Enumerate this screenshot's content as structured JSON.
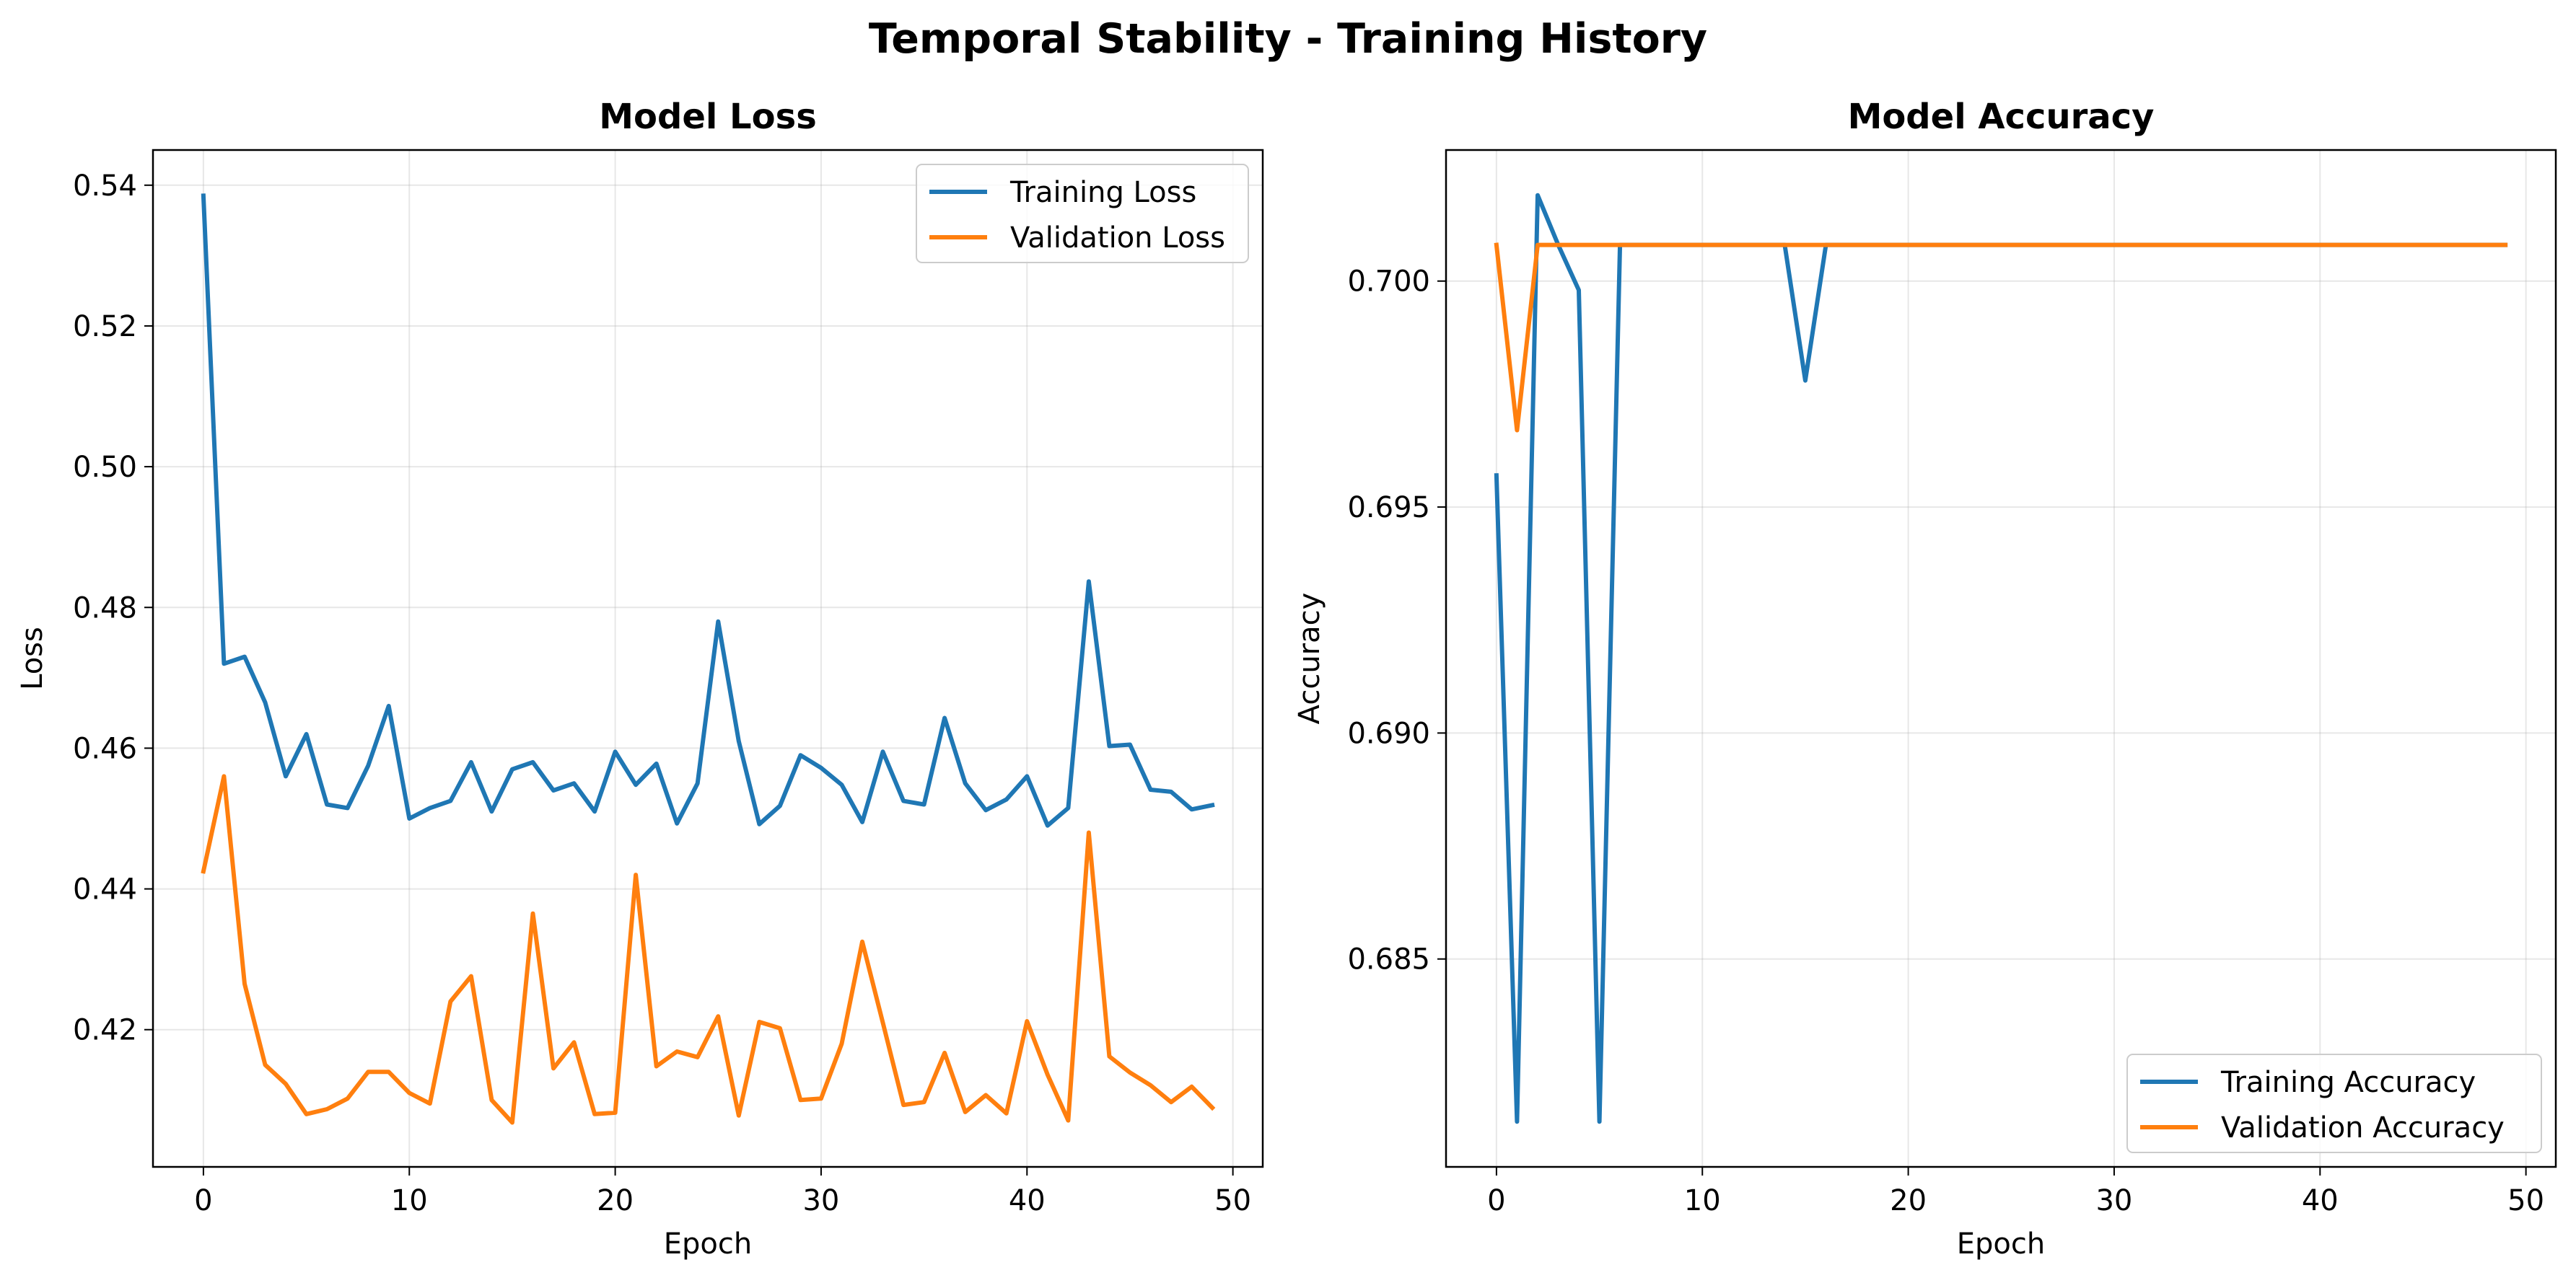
{
  "suptitle": "Temporal Stability - Training History",
  "chart_data": [
    {
      "type": "line",
      "title": "Model Loss",
      "xlabel": "Epoch",
      "ylabel": "Loss",
      "xlim": [
        -2.45,
        51.45
      ],
      "ylim": [
        0.4005,
        0.545
      ],
      "xticks": [
        0,
        10,
        20,
        30,
        40,
        50
      ],
      "xtick_labels": [
        "0",
        "10",
        "20",
        "30",
        "40",
        "50"
      ],
      "yticks": [
        0.42,
        0.44,
        0.46,
        0.48,
        0.5,
        0.52,
        0.54
      ],
      "ytick_labels": [
        "0.42",
        "0.44",
        "0.46",
        "0.48",
        "0.50",
        "0.52",
        "0.54"
      ],
      "grid": true,
      "legend_position": "upper-right",
      "x": [
        0,
        1,
        2,
        3,
        4,
        5,
        6,
        7,
        8,
        9,
        10,
        11,
        12,
        13,
        14,
        15,
        16,
        17,
        18,
        19,
        20,
        21,
        22,
        23,
        24,
        25,
        26,
        27,
        28,
        29,
        30,
        31,
        32,
        33,
        34,
        35,
        36,
        37,
        38,
        39,
        40,
        41,
        42,
        43,
        44,
        45,
        46,
        47,
        48,
        49
      ],
      "series": [
        {
          "name": "Training Loss",
          "color": "#1f77b4",
          "values": [
            0.5385,
            0.472,
            0.473,
            0.4665,
            0.456,
            0.462,
            0.452,
            0.4515,
            0.4575,
            0.466,
            0.45,
            0.4515,
            0.4525,
            0.458,
            0.451,
            0.457,
            0.458,
            0.454,
            0.455,
            0.451,
            0.4595,
            0.4548,
            0.4578,
            0.4493,
            0.455,
            0.478,
            0.461,
            0.4492,
            0.4518,
            0.459,
            0.4572,
            0.4548,
            0.4495,
            0.4595,
            0.4525,
            0.452,
            0.4643,
            0.455,
            0.4512,
            0.4527,
            0.456,
            0.449,
            0.4515,
            0.4837,
            0.4603,
            0.4605,
            0.4541,
            0.4538,
            0.4513,
            0.4519
          ]
        },
        {
          "name": "Validation Loss",
          "color": "#ff7f0e",
          "values": [
            0.4425,
            0.456,
            0.4265,
            0.415,
            0.4123,
            0.408,
            0.4087,
            0.4102,
            0.414,
            0.414,
            0.411,
            0.4095,
            0.424,
            0.4276,
            0.41,
            0.4068,
            0.4365,
            0.4145,
            0.4182,
            0.408,
            0.4082,
            0.442,
            0.4148,
            0.4169,
            0.4161,
            0.4219,
            0.4078,
            0.4211,
            0.4202,
            0.41,
            0.4102,
            0.418,
            0.4325,
            0.421,
            0.4093,
            0.4097,
            0.4167,
            0.4083,
            0.4107,
            0.4081,
            0.4212,
            0.4136,
            0.4071,
            0.448,
            0.4162,
            0.4139,
            0.4121,
            0.4097,
            0.4119,
            0.4089
          ]
        }
      ]
    },
    {
      "type": "line",
      "title": "Model Accuracy",
      "xlabel": "Epoch",
      "ylabel": "Accuracy",
      "xlim": [
        -2.45,
        51.45
      ],
      "ylim": [
        0.6804,
        0.7029
      ],
      "xticks": [
        0,
        10,
        20,
        30,
        40,
        50
      ],
      "xtick_labels": [
        "0",
        "10",
        "20",
        "30",
        "40",
        "50"
      ],
      "yticks": [
        0.685,
        0.69,
        0.695,
        0.7
      ],
      "ytick_labels": [
        "0.685",
        "0.690",
        "0.695",
        "0.700"
      ],
      "grid": true,
      "legend_position": "lower-right",
      "x": [
        0,
        1,
        2,
        3,
        4,
        5,
        6,
        7,
        8,
        9,
        10,
        11,
        12,
        13,
        14,
        15,
        16,
        17,
        18,
        19,
        20,
        21,
        22,
        23,
        24,
        25,
        26,
        27,
        28,
        29,
        30,
        31,
        32,
        33,
        34,
        35,
        36,
        37,
        38,
        39,
        40,
        41,
        42,
        43,
        44,
        45,
        46,
        47,
        48,
        49
      ],
      "series": [
        {
          "name": "Training Accuracy",
          "color": "#1f77b4",
          "values": [
            0.6957,
            0.6814,
            0.7019,
            0.7008,
            0.6998,
            0.6814,
            0.7008,
            0.7008,
            0.7008,
            0.7008,
            0.7008,
            0.7008,
            0.7008,
            0.7008,
            0.7008,
            0.6978,
            0.7008,
            0.7008,
            0.7008,
            0.7008,
            0.7008,
            0.7008,
            0.7008,
            0.7008,
            0.7008,
            0.7008,
            0.7008,
            0.7008,
            0.7008,
            0.7008,
            0.7008,
            0.7008,
            0.7008,
            0.7008,
            0.7008,
            0.7008,
            0.7008,
            0.7008,
            0.7008,
            0.7008,
            0.7008,
            0.7008,
            0.7008,
            0.7008,
            0.7008,
            0.7008,
            0.7008,
            0.7008,
            0.7008,
            0.7008
          ]
        },
        {
          "name": "Validation Accuracy",
          "color": "#ff7f0e",
          "values": [
            0.7008,
            0.6967,
            0.7008,
            0.7008,
            0.7008,
            0.7008,
            0.7008,
            0.7008,
            0.7008,
            0.7008,
            0.7008,
            0.7008,
            0.7008,
            0.7008,
            0.7008,
            0.7008,
            0.7008,
            0.7008,
            0.7008,
            0.7008,
            0.7008,
            0.7008,
            0.7008,
            0.7008,
            0.7008,
            0.7008,
            0.7008,
            0.7008,
            0.7008,
            0.7008,
            0.7008,
            0.7008,
            0.7008,
            0.7008,
            0.7008,
            0.7008,
            0.7008,
            0.7008,
            0.7008,
            0.7008,
            0.7008,
            0.7008,
            0.7008,
            0.7008,
            0.7008,
            0.7008,
            0.7008,
            0.7008,
            0.7008,
            0.7008
          ]
        }
      ]
    }
  ]
}
